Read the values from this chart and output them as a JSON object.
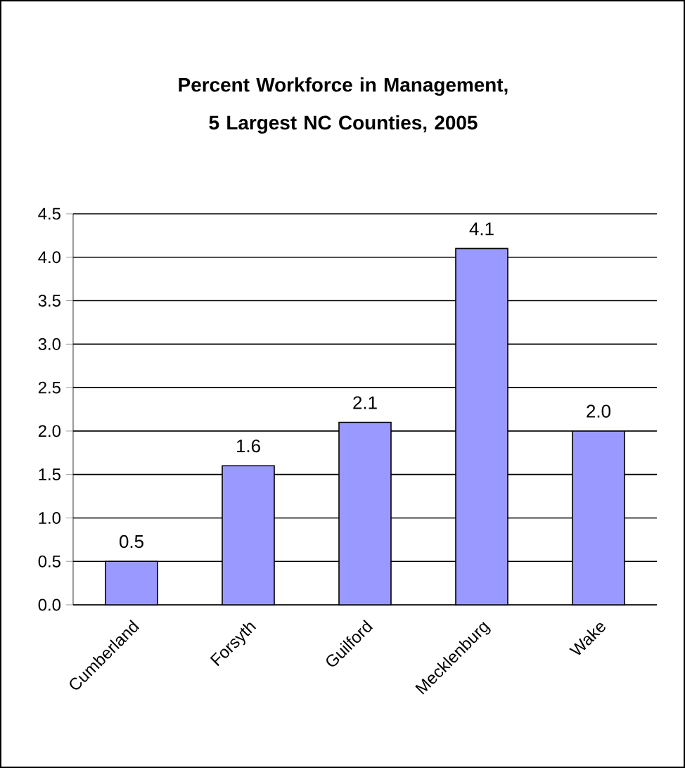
{
  "chart_data": {
    "type": "bar",
    "title": "Percent Workforce in Management, 5 Largest NC Counties, 2005",
    "categories": [
      "Cumberland",
      "Forsyth",
      "Guilford",
      "Mecklenburg",
      "Wake"
    ],
    "values": [
      0.5,
      1.6,
      2.1,
      4.1,
      2.0
    ],
    "value_labels": [
      "0.5",
      "1.6",
      "2.1",
      "4.1",
      "2.0"
    ],
    "color": "#9999ff",
    "ylim": [
      0,
      4.5
    ],
    "yticks": [
      {
        "value": 0,
        "label": "0.0"
      },
      {
        "value": 0.5,
        "label": "0.5"
      },
      {
        "value": 1,
        "label": "1.0"
      },
      {
        "value": 1.5,
        "label": "1.5"
      },
      {
        "value": 2,
        "label": "2.0"
      },
      {
        "value": 2.5,
        "label": "2.5"
      },
      {
        "value": 3,
        "label": "3.0"
      },
      {
        "value": 3.5,
        "label": "3.5"
      },
      {
        "value": 4,
        "label": "4.0"
      },
      {
        "value": 4.5,
        "label": "4.5"
      }
    ],
    "grid": "y"
  }
}
